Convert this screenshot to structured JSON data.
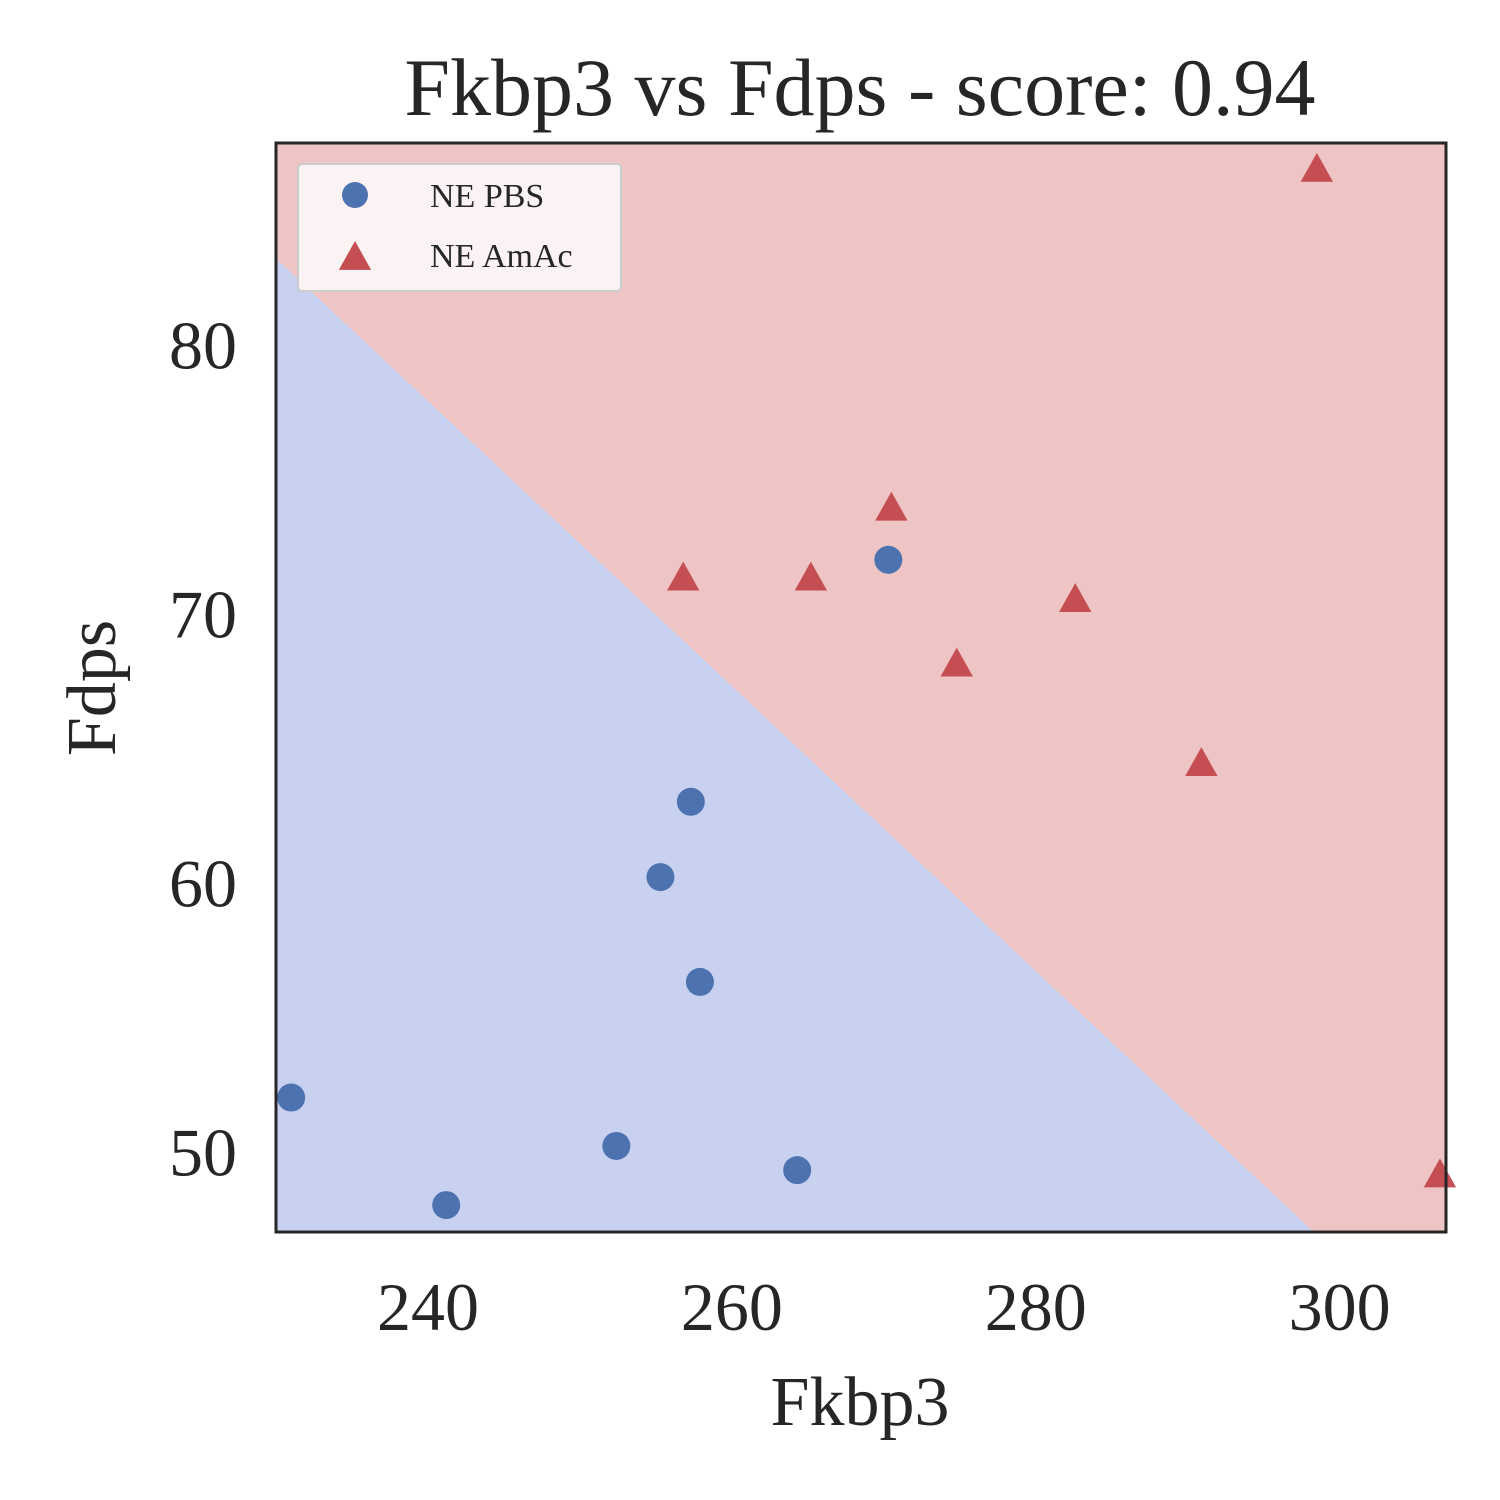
{
  "chart_data": {
    "type": "scatter",
    "title": "Fkbp3 vs Fdps - score: 0.94",
    "xlabel": "Fkbp3",
    "ylabel": "Fdps",
    "xlim": [
      230,
      307
    ],
    "ylim": [
      47,
      87.5
    ],
    "x_ticks": [
      "240",
      "260",
      "280",
      "300"
    ],
    "y_ticks": [
      "50",
      "60",
      "70",
      "80"
    ],
    "x_tick_values": [
      240,
      260,
      280,
      300
    ],
    "y_tick_values": [
      50,
      60,
      70,
      80
    ],
    "grid": false,
    "legend_position": "top-left",
    "decision_boundary": {
      "points": [
        [
          230,
          83.2
        ],
        [
          298.3,
          47
        ]
      ],
      "upper_region_color": "#eec4c4",
      "lower_region_color": "#c9d1f1"
    },
    "series": [
      {
        "name": "NE PBS",
        "marker": "circle",
        "color": "#4c72b0",
        "points": [
          [
            231,
            52.0
          ],
          [
            241.2,
            48.0
          ],
          [
            252.4,
            50.2
          ],
          [
            255.3,
            60.2
          ],
          [
            257.3,
            63.0
          ],
          [
            257.9,
            56.3
          ],
          [
            264.3,
            49.3
          ],
          [
            270.3,
            72.0
          ]
        ]
      },
      {
        "name": "NE AmAc",
        "marker": "triangle",
        "color": "#c44e52",
        "points": [
          [
            256.8,
            71.3
          ],
          [
            265.2,
            71.3
          ],
          [
            270.5,
            73.9
          ],
          [
            274.8,
            68.1
          ],
          [
            282.6,
            70.5
          ],
          [
            290.9,
            64.4
          ],
          [
            298.5,
            86.5
          ],
          [
            306.6,
            49.1
          ]
        ]
      }
    ]
  }
}
